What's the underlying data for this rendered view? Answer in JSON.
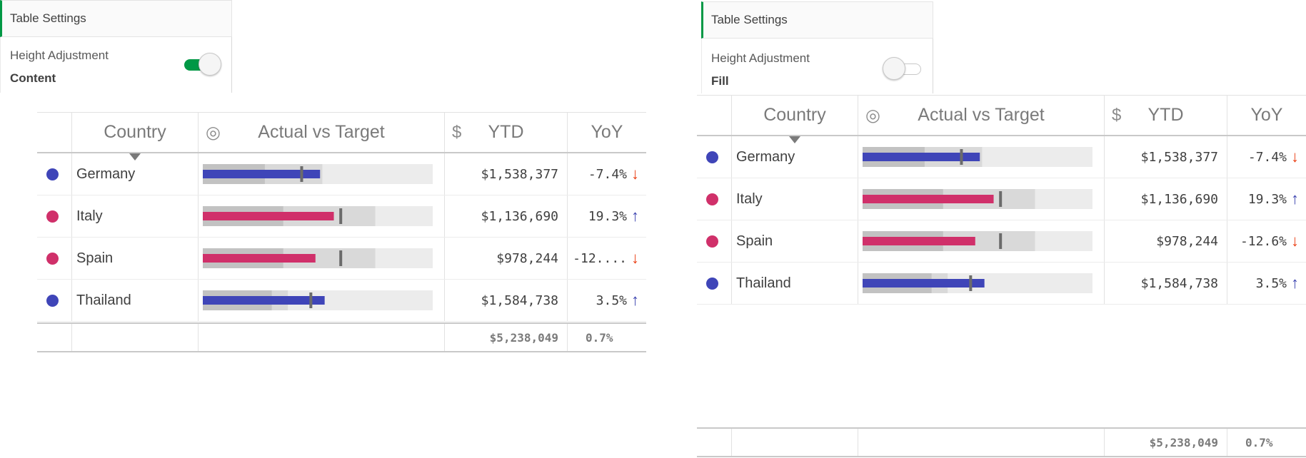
{
  "colors": {
    "accent_green": "#009845",
    "series_blue": "#3f45b8",
    "series_pink": "#d0306a",
    "range_dark": "#c2c2c2",
    "range_mid": "#d9d9d9",
    "range_light": "#ececec",
    "target_marker": "#6b6b6b",
    "arrow_up": "#3c44b0",
    "arrow_down": "#ea3f14"
  },
  "icons": {
    "target": "target-icon",
    "dollar": "dollar-icon",
    "up": "arrow-up-icon",
    "down": "arrow-down-icon"
  },
  "demos": [
    {
      "settings": {
        "title": "Table Settings",
        "label": "Height Adjustment",
        "value": "Content",
        "toggle_on": true
      },
      "table": {
        "headers": {
          "country": "Country",
          "bar": "Actual vs Target",
          "ytd": "YTD",
          "yoy": "YoY"
        },
        "rows": [
          {
            "country": "Germany",
            "dot": "#3f45b8",
            "ytd": "$1,538,377",
            "yoy": "-7.4%",
            "trend": "down",
            "actual": 0.51,
            "target": 0.43,
            "ranges": [
              0.27,
              0.52,
              1.0
            ]
          },
          {
            "country": "Italy",
            "dot": "#d0306a",
            "ytd": "$1,136,690",
            "yoy": "19.3%",
            "trend": "up",
            "actual": 0.57,
            "target": 0.6,
            "ranges": [
              0.35,
              0.75,
              1.0
            ]
          },
          {
            "country": "Spain",
            "dot": "#d0306a",
            "ytd": "$978,244",
            "yoy": "-12....",
            "trend": "down",
            "actual": 0.49,
            "target": 0.6,
            "ranges": [
              0.35,
              0.75,
              1.0
            ]
          },
          {
            "country": "Thailand",
            "dot": "#3f45b8",
            "ytd": "$1,584,738",
            "yoy": "3.5%",
            "trend": "up",
            "actual": 0.53,
            "target": 0.47,
            "ranges": [
              0.3,
              0.37,
              1.0
            ]
          }
        ],
        "totals": {
          "ytd": "$5,238,049",
          "yoy": "0.7%"
        }
      }
    },
    {
      "settings": {
        "title": "Table Settings",
        "label": "Height Adjustment",
        "value": "Fill",
        "toggle_on": false
      },
      "table": {
        "headers": {
          "country": "Country",
          "bar": "Actual vs Target",
          "ytd": "YTD",
          "yoy": "YoY"
        },
        "rows": [
          {
            "country": "Germany",
            "dot": "#3f45b8",
            "ytd": "$1,538,377",
            "yoy": "-7.4%",
            "trend": "down",
            "actual": 0.51,
            "target": 0.43,
            "ranges": [
              0.27,
              0.52,
              1.0
            ]
          },
          {
            "country": "Italy",
            "dot": "#d0306a",
            "ytd": "$1,136,690",
            "yoy": "19.3%",
            "trend": "up",
            "actual": 0.57,
            "target": 0.6,
            "ranges": [
              0.35,
              0.75,
              1.0
            ]
          },
          {
            "country": "Spain",
            "dot": "#d0306a",
            "ytd": "$978,244",
            "yoy": "-12.6%",
            "trend": "down",
            "actual": 0.49,
            "target": 0.6,
            "ranges": [
              0.35,
              0.75,
              1.0
            ]
          },
          {
            "country": "Thailand",
            "dot": "#3f45b8",
            "ytd": "$1,584,738",
            "yoy": "3.5%",
            "trend": "up",
            "actual": 0.53,
            "target": 0.47,
            "ranges": [
              0.3,
              0.37,
              1.0
            ]
          }
        ],
        "totals": {
          "ytd": "$5,238,049",
          "yoy": "0.7%"
        }
      }
    }
  ]
}
